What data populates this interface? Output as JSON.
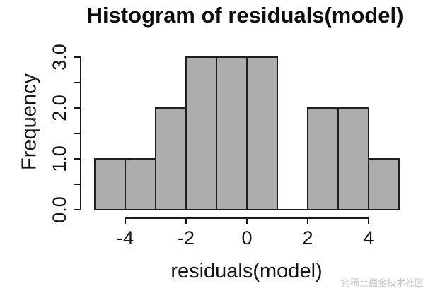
{
  "watermark": "@稀土掘金技术社区",
  "colors": {
    "bar_fill": "#adadad",
    "bar_border": "#1f1f1f",
    "axis": "#1a1a1a",
    "text": "#141414",
    "watermark": "#c9c9c9"
  },
  "chart_data": {
    "type": "bar",
    "subtype": "histogram",
    "title": "Histogram of residuals(model)",
    "xlabel": "residuals(model)",
    "ylabel": "Frequency",
    "xlim": [
      -5,
      5
    ],
    "ylim": [
      0,
      3
    ],
    "grid": false,
    "legend_position": "none",
    "breaks": [
      -5,
      -4,
      -3,
      -2,
      -1,
      0,
      1,
      2,
      3,
      4,
      5
    ],
    "counts": [
      1,
      1,
      2,
      3,
      3,
      3,
      0,
      2,
      2,
      1
    ],
    "bins": [
      {
        "from": -5,
        "to": -4,
        "count": 1
      },
      {
        "from": -4,
        "to": -3,
        "count": 1
      },
      {
        "from": -3,
        "to": -2,
        "count": 2
      },
      {
        "from": -2,
        "to": -1,
        "count": 3
      },
      {
        "from": -1,
        "to": 0,
        "count": 3
      },
      {
        "from": 0,
        "to": 1,
        "count": 3
      },
      {
        "from": 1,
        "to": 2,
        "count": 0
      },
      {
        "from": 2,
        "to": 3,
        "count": 2
      },
      {
        "from": 3,
        "to": 4,
        "count": 2
      },
      {
        "from": 4,
        "to": 5,
        "count": 1
      }
    ],
    "x_ticks": [
      {
        "v": -4,
        "label": "-4"
      },
      {
        "v": -2,
        "label": "-2"
      },
      {
        "v": 0,
        "label": "0"
      },
      {
        "v": 2,
        "label": "2"
      },
      {
        "v": 4,
        "label": "4"
      }
    ],
    "y_ticks": [
      {
        "v": 0,
        "label": "0.0"
      },
      {
        "v": 0.5,
        "label": ""
      },
      {
        "v": 1,
        "label": "1.0"
      },
      {
        "v": 1.5,
        "label": ""
      },
      {
        "v": 2,
        "label": "2.0"
      },
      {
        "v": 2.5,
        "label": ""
      },
      {
        "v": 3,
        "label": "3.0"
      }
    ]
  }
}
